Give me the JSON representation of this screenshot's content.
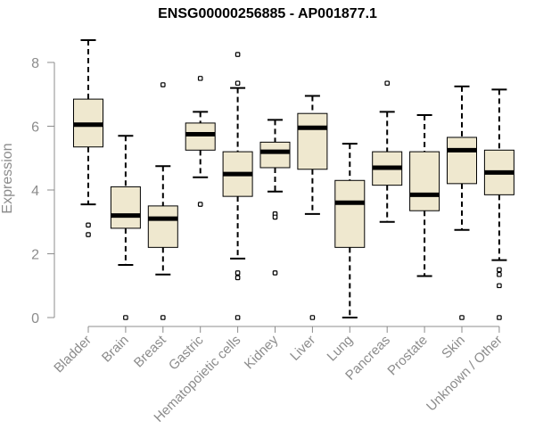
{
  "chart_data": {
    "type": "box",
    "title": "ENSG00000256885 - AP001877.1",
    "xlabel": "",
    "ylabel": "Expression",
    "ylim": [
      0,
      8.8
    ],
    "yticks": [
      0,
      2,
      4,
      6,
      8
    ],
    "grid": false,
    "colors": {
      "box_fill": "#efe8cf",
      "median": "#000000",
      "outline": "#000000",
      "axis": "#8c8c8c"
    },
    "categories": [
      "Bladder",
      "Brain",
      "Breast",
      "Gastric",
      "Hematopoietic cells",
      "Kidney",
      "Liver",
      "Lung",
      "Pancreas",
      "Prostate",
      "Skin",
      "Unknown / Other"
    ],
    "boxes": [
      {
        "category": "Bladder",
        "whisker_low": 3.55,
        "q1": 5.35,
        "median": 6.05,
        "q3": 6.85,
        "whisker_high": 8.7,
        "outliers": [
          2.9,
          2.6
        ]
      },
      {
        "category": "Brain",
        "whisker_low": 1.65,
        "q1": 2.8,
        "median": 3.2,
        "q3": 4.1,
        "whisker_high": 5.7,
        "outliers": [
          0
        ]
      },
      {
        "category": "Breast",
        "whisker_low": 1.35,
        "q1": 2.2,
        "median": 3.1,
        "q3": 3.5,
        "whisker_high": 4.75,
        "outliers": [
          7.3,
          0
        ]
      },
      {
        "category": "Gastric",
        "whisker_low": 4.4,
        "q1": 5.25,
        "median": 5.75,
        "q3": 6.1,
        "whisker_high": 6.45,
        "outliers": [
          7.5,
          3.55
        ]
      },
      {
        "category": "Hematopoietic cells",
        "whisker_low": 1.85,
        "q1": 3.8,
        "median": 4.5,
        "q3": 5.2,
        "whisker_high": 7.2,
        "outliers": [
          8.25,
          7.35,
          1.4,
          1.25,
          0
        ]
      },
      {
        "category": "Kidney",
        "whisker_low": 3.95,
        "q1": 4.7,
        "median": 5.2,
        "q3": 5.5,
        "whisker_high": 6.2,
        "outliers": [
          3.25,
          3.15,
          1.4
        ]
      },
      {
        "category": "Liver",
        "whisker_low": 3.25,
        "q1": 4.65,
        "median": 5.95,
        "q3": 6.4,
        "whisker_high": 6.95,
        "outliers": [
          0
        ]
      },
      {
        "category": "Lung",
        "whisker_low": 0.0,
        "q1": 2.2,
        "median": 3.6,
        "q3": 4.3,
        "whisker_high": 5.45,
        "outliers": []
      },
      {
        "category": "Pancreas",
        "whisker_low": 3.0,
        "q1": 4.15,
        "median": 4.7,
        "q3": 5.2,
        "whisker_high": 6.45,
        "outliers": [
          7.35
        ]
      },
      {
        "category": "Prostate",
        "whisker_low": 1.3,
        "q1": 3.35,
        "median": 3.85,
        "q3": 5.2,
        "whisker_high": 6.35,
        "outliers": []
      },
      {
        "category": "Skin",
        "whisker_low": 2.75,
        "q1": 4.2,
        "median": 5.25,
        "q3": 5.65,
        "whisker_high": 7.25,
        "outliers": [
          0
        ]
      },
      {
        "category": "Unknown / Other",
        "whisker_low": 1.8,
        "q1": 3.85,
        "median": 4.55,
        "q3": 5.25,
        "whisker_high": 7.15,
        "outliers": [
          1.5,
          1.35,
          1.0,
          0
        ]
      }
    ]
  }
}
